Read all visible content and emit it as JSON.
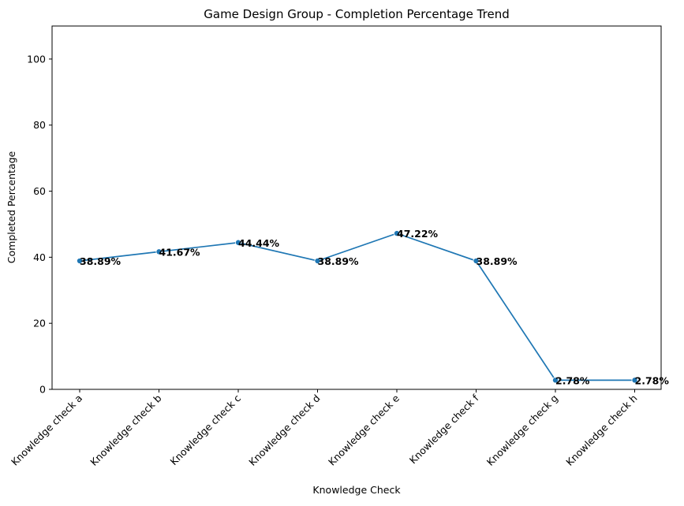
{
  "chart_data": {
    "type": "line",
    "title": "Game Design Group - Completion Percentage Trend",
    "xlabel": "Knowledge Check",
    "ylabel": "Completed Percentage",
    "categories": [
      "Knowledge check a",
      "Knowledge check b",
      "Knowledge check c",
      "Knowledge check d",
      "Knowledge check e",
      "Knowledge check f",
      "Knowledge check g",
      "Knowledge check h"
    ],
    "series": [
      {
        "values": [
          38.89,
          41.67,
          44.44,
          38.89,
          47.22,
          38.89,
          2.78,
          2.78
        ],
        "color": "#1f77b4"
      }
    ],
    "data_labels": [
      "38.89%",
      "41.67%",
      "44.44%",
      "38.89%",
      "47.22%",
      "38.89%",
      "2.78%",
      "2.78%"
    ],
    "ylim": [
      0,
      110
    ],
    "yticks": [
      0,
      20,
      40,
      60,
      80,
      100
    ],
    "grid": false,
    "legend": "none"
  }
}
